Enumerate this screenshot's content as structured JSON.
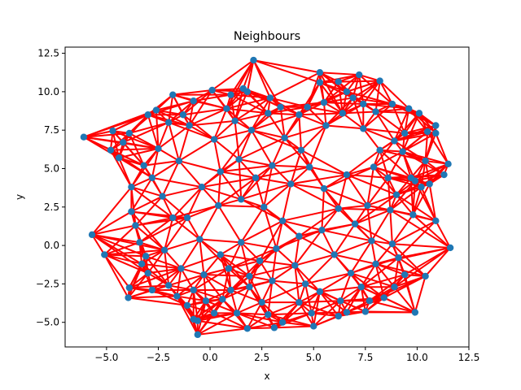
{
  "chart_data": {
    "type": "scatter",
    "title": "Neighbours",
    "xlabel": "x",
    "ylabel": "y",
    "xlim": [
      -7.0,
      12.5
    ],
    "ylim": [
      -6.6,
      12.9
    ],
    "xticks": [
      -5.0,
      -2.5,
      0.0,
      2.5,
      5.0,
      7.5,
      10.0,
      12.5
    ],
    "xtick_labels": [
      "−5.0",
      "−2.5",
      "0.0",
      "2.5",
      "5.0",
      "7.5",
      "10.0",
      "12.5"
    ],
    "yticks": [
      -5.0,
      -2.5,
      0.0,
      2.5,
      5.0,
      7.5,
      10.0,
      12.5
    ],
    "ytick_labels": [
      "−5.0",
      "−2.5",
      "0.0",
      "2.5",
      "5.0",
      "7.5",
      "10.0",
      "12.5"
    ],
    "grid": false,
    "point_color": "#1f77b4",
    "edge_color": "#ff0000",
    "points": [
      [
        -6.1,
        7.05
      ],
      [
        -5.7,
        0.7
      ],
      [
        -5.1,
        -0.6
      ],
      [
        -4.8,
        6.2
      ],
      [
        -4.7,
        7.45
      ],
      [
        -4.4,
        5.7
      ],
      [
        -3.9,
        7.3
      ],
      [
        -3.9,
        -2.75
      ],
      [
        -3.95,
        -3.4
      ],
      [
        -3.8,
        3.8
      ],
      [
        -3.8,
        2.2
      ],
      [
        -3.6,
        1.3
      ],
      [
        -3.4,
        0.2
      ],
      [
        -3.1,
        -0.7
      ],
      [
        -3.0,
        -1.8
      ],
      [
        -2.8,
        -2.9
      ],
      [
        -3.0,
        8.5
      ],
      [
        -2.6,
        8.8
      ],
      [
        -1.8,
        9.8
      ],
      [
        -1.3,
        8.5
      ],
      [
        -0.8,
        9.4
      ],
      [
        0.1,
        10.1
      ],
      [
        1.0,
        9.8
      ],
      [
        1.6,
        10.2
      ],
      [
        1.8,
        10.0
      ],
      [
        2.1,
        12.05
      ],
      [
        3.4,
        9.0
      ],
      [
        4.3,
        8.5
      ],
      [
        5.3,
        11.25
      ],
      [
        5.3,
        10.6
      ],
      [
        6.2,
        10.65
      ],
      [
        6.6,
        10.0
      ],
      [
        7.2,
        11.1
      ],
      [
        8.2,
        10.7
      ],
      [
        5.5,
        9.3
      ],
      [
        7.4,
        9.2
      ],
      [
        8.8,
        9.2
      ],
      [
        9.6,
        8.9
      ],
      [
        10.1,
        8.6
      ],
      [
        10.5,
        7.4
      ],
      [
        10.9,
        7.8
      ],
      [
        10.9,
        7.3
      ],
      [
        9.4,
        7.3
      ],
      [
        8.9,
        6.8
      ],
      [
        10.4,
        5.5
      ],
      [
        11.5,
        5.3
      ],
      [
        11.3,
        4.6
      ],
      [
        10.6,
        4.0
      ],
      [
        10.2,
        3.8
      ],
      [
        9.9,
        4.2
      ],
      [
        9.7,
        4.4
      ],
      [
        9.0,
        3.3
      ],
      [
        10.9,
        1.6
      ],
      [
        11.6,
        -0.15
      ],
      [
        9.9,
        -4.35
      ],
      [
        10.4,
        -2.0
      ],
      [
        9.4,
        -1.9
      ],
      [
        8.9,
        -2.7
      ],
      [
        7.7,
        -3.6
      ],
      [
        7.5,
        -4.3
      ],
      [
        6.6,
        -4.35
      ],
      [
        6.2,
        -4.6
      ],
      [
        5.0,
        -5.25
      ],
      [
        4.9,
        -4.4
      ],
      [
        4.3,
        -3.7
      ],
      [
        3.5,
        -5.0
      ],
      [
        3.1,
        -5.35
      ],
      [
        2.8,
        -4.5
      ],
      [
        2.5,
        -3.7
      ],
      [
        1.9,
        -2.7
      ],
      [
        1.8,
        -5.4
      ],
      [
        1.3,
        -4.4
      ],
      [
        0.6,
        -3.5
      ],
      [
        -0.2,
        -3.6
      ],
      [
        -0.6,
        -4.9
      ],
      [
        -0.6,
        -5.8
      ],
      [
        -0.8,
        -4.8
      ],
      [
        -1.1,
        -3.9
      ],
      [
        -0.8,
        -2.9
      ],
      [
        -2.0,
        -2.6
      ],
      [
        -1.4,
        -1.5
      ],
      [
        -2.2,
        -0.3
      ],
      [
        -1.8,
        1.8
      ],
      [
        -2.3,
        3.2
      ],
      [
        -1.5,
        5.5
      ],
      [
        -2.5,
        6.3
      ],
      [
        -1.0,
        7.8
      ],
      [
        0.2,
        6.9
      ],
      [
        1.2,
        8.1
      ],
      [
        2.0,
        7.5
      ],
      [
        2.8,
        8.6
      ],
      [
        3.6,
        7.0
      ],
      [
        4.4,
        6.2
      ],
      [
        5.6,
        7.8
      ],
      [
        6.4,
        8.6
      ],
      [
        7.4,
        7.6
      ],
      [
        8.2,
        6.2
      ],
      [
        7.9,
        5.1
      ],
      [
        8.6,
        4.4
      ],
      [
        8.7,
        2.3
      ],
      [
        7.6,
        2.6
      ],
      [
        7.0,
        1.4
      ],
      [
        7.8,
        0.3
      ],
      [
        8.8,
        0.1
      ],
      [
        8.0,
        -1.2
      ],
      [
        6.8,
        -1.8
      ],
      [
        6.0,
        -0.6
      ],
      [
        5.4,
        1.0
      ],
      [
        6.2,
        2.4
      ],
      [
        5.5,
        3.7
      ],
      [
        6.6,
        4.6
      ],
      [
        4.8,
        5.1
      ],
      [
        3.9,
        4.0
      ],
      [
        3.0,
        5.2
      ],
      [
        2.2,
        4.4
      ],
      [
        1.4,
        5.6
      ],
      [
        0.5,
        4.8
      ],
      [
        -0.4,
        3.8
      ],
      [
        0.4,
        2.6
      ],
      [
        1.5,
        3.0
      ],
      [
        2.6,
        2.5
      ],
      [
        3.5,
        1.6
      ],
      [
        4.3,
        0.6
      ],
      [
        3.2,
        -0.2
      ],
      [
        2.4,
        -1.0
      ],
      [
        1.5,
        0.2
      ],
      [
        0.5,
        -0.6
      ],
      [
        -0.5,
        0.4
      ],
      [
        -1.1,
        1.8
      ],
      [
        -0.3,
        -1.9
      ],
      [
        0.9,
        -1.5
      ],
      [
        1.9,
        -2.0
      ],
      [
        3.0,
        -2.3
      ],
      [
        4.1,
        -1.3
      ],
      [
        4.6,
        -2.5
      ],
      [
        5.3,
        -3.0
      ],
      [
        6.3,
        -3.6
      ],
      [
        7.3,
        -2.7
      ],
      [
        8.4,
        -3.4
      ],
      [
        -3.2,
        5.2
      ],
      [
        -2.8,
        4.4
      ],
      [
        -4.2,
        6.7
      ],
      [
        -2.0,
        8.0
      ],
      [
        0.8,
        8.9
      ],
      [
        2.9,
        9.6
      ],
      [
        4.7,
        9.0
      ],
      [
        6.9,
        9.6
      ],
      [
        8.0,
        8.7
      ],
      [
        9.3,
        6.1
      ],
      [
        9.8,
        2.0
      ],
      [
        9.1,
        -0.8
      ],
      [
        -3.3,
        -1.2
      ],
      [
        -1.6,
        -3.3
      ],
      [
        0.2,
        -4.4
      ],
      [
        1.0,
        -2.9
      ]
    ]
  }
}
